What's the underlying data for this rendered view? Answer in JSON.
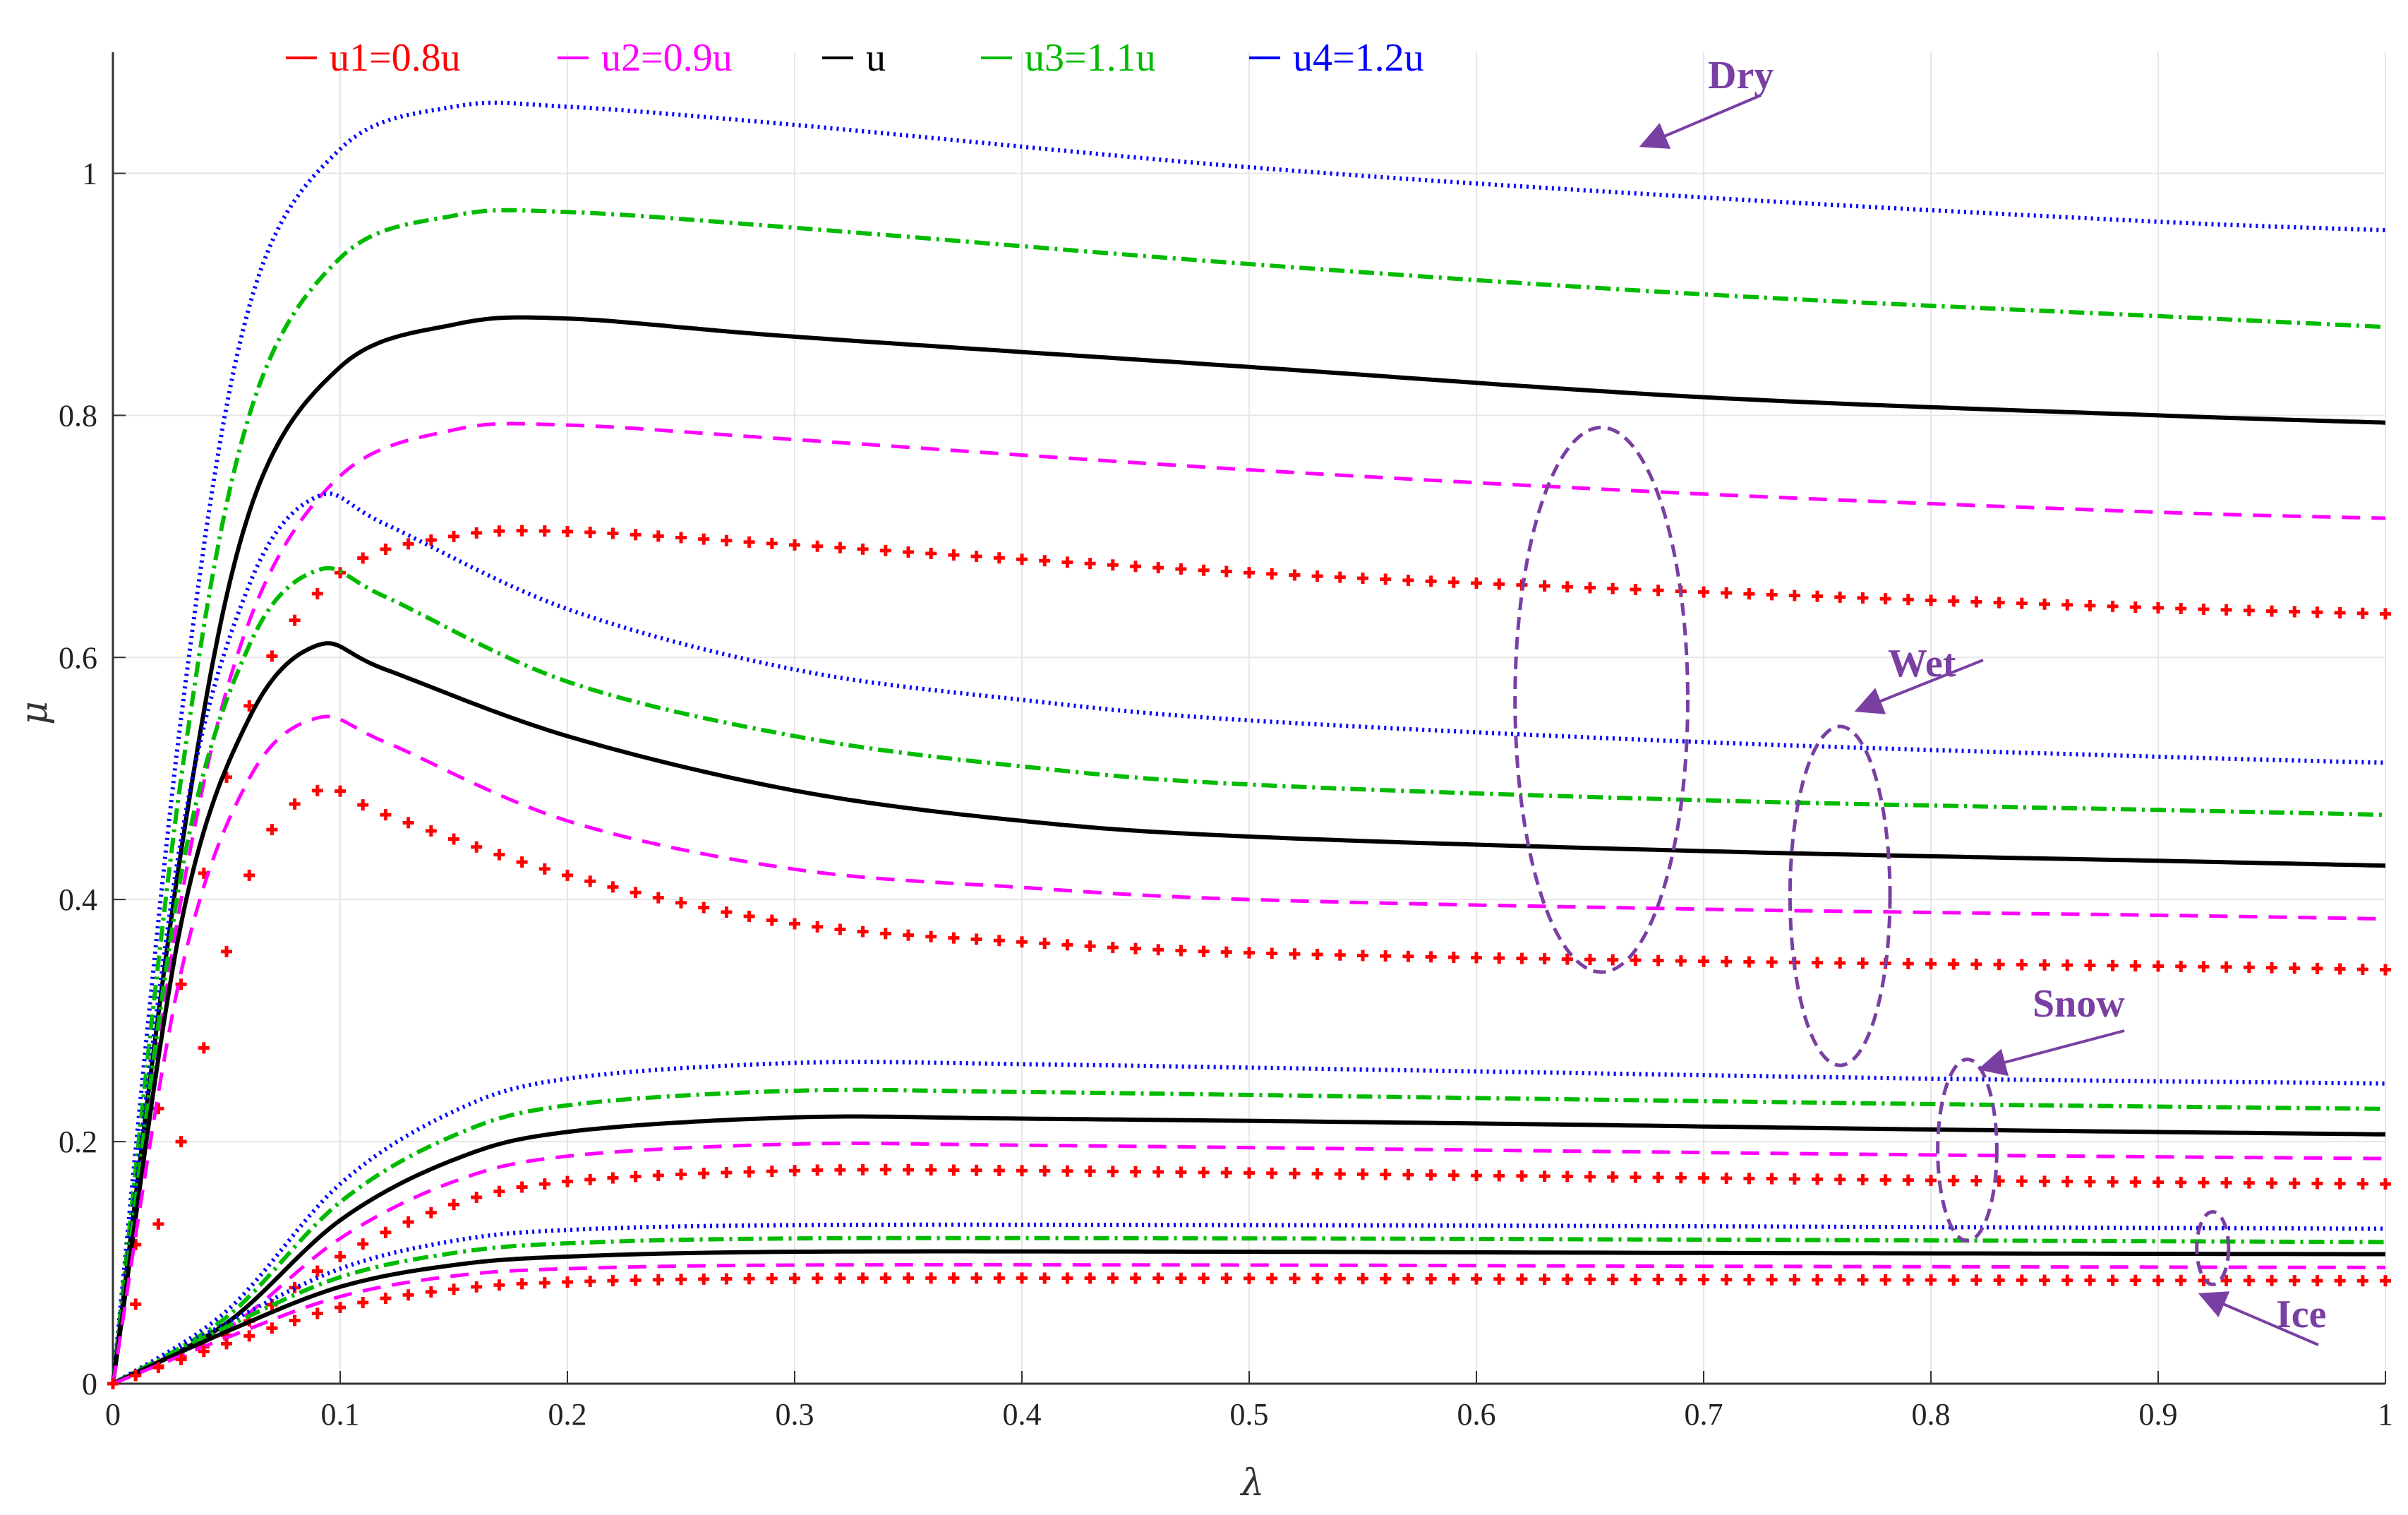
{
  "chart_data": {
    "type": "line",
    "xlabel": "λ",
    "ylabel": "μ",
    "xlim": [
      0,
      1
    ],
    "ylim": [
      0,
      1.1
    ],
    "grid": true,
    "legend_position": "top",
    "x_ticks": [
      "0",
      "0.1",
      "0.2",
      "0.3",
      "0.4",
      "0.5",
      "0.6",
      "0.7",
      "0.8",
      "0.9",
      "1"
    ],
    "y_ticks": [
      "0",
      "0.2",
      "0.4",
      "0.6",
      "0.8",
      "1"
    ],
    "legend": [
      {
        "name": "u1=0.8u",
        "color": "#ff0000"
      },
      {
        "name": "u2=0.9u",
        "color": "#ff00ff"
      },
      {
        "name": "u",
        "color": "#000000"
      },
      {
        "name": "u3=1.1u",
        "color": "#00bb00"
      },
      {
        "name": "u4=1.2u",
        "color": "#0000ff"
      }
    ],
    "annotations": [
      {
        "text": "Dry",
        "group": "Dry"
      },
      {
        "text": "Wet",
        "group": "Wet"
      },
      {
        "text": "Snow",
        "group": "Snow"
      },
      {
        "text": "Ice",
        "group": "Ice"
      }
    ],
    "groups": [
      {
        "name": "Dry",
        "series": [
          {
            "legend": "u4=1.2u",
            "points": [
              [
                0,
                0
              ],
              [
                0.03,
                0.55
              ],
              [
                0.06,
                0.89
              ],
              [
                0.1,
                1.02
              ],
              [
                0.15,
                1.055
              ],
              [
                0.2,
                1.055
              ],
              [
                0.3,
                1.04
              ],
              [
                0.5,
                1.005
              ],
              [
                0.7,
                0.98
              ],
              [
                0.9,
                0.96
              ],
              [
                1,
                0.953
              ]
            ]
          },
          {
            "legend": "u3=1.1u",
            "points": [
              [
                0,
                0
              ],
              [
                0.03,
                0.5
              ],
              [
                0.06,
                0.8
              ],
              [
                0.1,
                0.93
              ],
              [
                0.15,
                0.965
              ],
              [
                0.2,
                0.968
              ],
              [
                0.3,
                0.955
              ],
              [
                0.5,
                0.925
              ],
              [
                0.7,
                0.9
              ],
              [
                0.9,
                0.882
              ],
              [
                1,
                0.873
              ]
            ]
          },
          {
            "legend": "u",
            "points": [
              [
                0,
                0
              ],
              [
                0.03,
                0.44
              ],
              [
                0.06,
                0.72
              ],
              [
                0.1,
                0.84
              ],
              [
                0.15,
                0.875
              ],
              [
                0.2,
                0.88
              ],
              [
                0.3,
                0.865
              ],
              [
                0.5,
                0.84
              ],
              [
                0.7,
                0.815
              ],
              [
                0.9,
                0.8
              ],
              [
                1,
                0.794
              ]
            ]
          },
          {
            "legend": "u2=0.9u",
            "points": [
              [
                0,
                0
              ],
              [
                0.03,
                0.4
              ],
              [
                0.06,
                0.63
              ],
              [
                0.1,
                0.75
              ],
              [
                0.15,
                0.788
              ],
              [
                0.2,
                0.792
              ],
              [
                0.3,
                0.78
              ],
              [
                0.5,
                0.755
              ],
              [
                0.7,
                0.735
              ],
              [
                0.9,
                0.72
              ],
              [
                1,
                0.715
              ]
            ]
          },
          {
            "legend": "u1=0.8u",
            "points": [
              [
                0,
                0
              ],
              [
                0.03,
                0.33
              ],
              [
                0.06,
                0.56
              ],
              [
                0.1,
                0.67
              ],
              [
                0.15,
                0.7
              ],
              [
                0.2,
                0.704
              ],
              [
                0.3,
                0.693
              ],
              [
                0.5,
                0.67
              ],
              [
                0.7,
                0.654
              ],
              [
                0.9,
                0.641
              ],
              [
                1,
                0.636
              ]
            ]
          }
        ]
      },
      {
        "name": "Wet",
        "series": [
          {
            "legend": "u4=1.2u",
            "points": [
              [
                0,
                0
              ],
              [
                0.03,
                0.45
              ],
              [
                0.06,
                0.66
              ],
              [
                0.09,
                0.733
              ],
              [
                0.12,
                0.71
              ],
              [
                0.2,
                0.64
              ],
              [
                0.3,
                0.59
              ],
              [
                0.4,
                0.565
              ],
              [
                0.5,
                0.548
              ],
              [
                0.7,
                0.53
              ],
              [
                0.9,
                0.518
              ],
              [
                1,
                0.513
              ]
            ]
          },
          {
            "legend": "u3=1.1u",
            "points": [
              [
                0,
                0
              ],
              [
                0.03,
                0.42
              ],
              [
                0.06,
                0.61
              ],
              [
                0.09,
                0.672
              ],
              [
                0.12,
                0.65
              ],
              [
                0.2,
                0.58
              ],
              [
                0.3,
                0.535
              ],
              [
                0.4,
                0.51
              ],
              [
                0.5,
                0.495
              ],
              [
                0.7,
                0.482
              ],
              [
                0.9,
                0.474
              ],
              [
                1,
                0.47
              ]
            ]
          },
          {
            "legend": "u",
            "points": [
              [
                0,
                0
              ],
              [
                0.03,
                0.38
              ],
              [
                0.06,
                0.55
              ],
              [
                0.09,
                0.61
              ],
              [
                0.12,
                0.59
              ],
              [
                0.2,
                0.535
              ],
              [
                0.3,
                0.49
              ],
              [
                0.4,
                0.465
              ],
              [
                0.5,
                0.452
              ],
              [
                0.7,
                0.44
              ],
              [
                0.9,
                0.432
              ],
              [
                1,
                0.428
              ]
            ]
          },
          {
            "legend": "u2=0.9u",
            "points": [
              [
                0,
                0
              ],
              [
                0.03,
                0.34
              ],
              [
                0.06,
                0.5
              ],
              [
                0.09,
                0.55
              ],
              [
                0.12,
                0.53
              ],
              [
                0.2,
                0.465
              ],
              [
                0.3,
                0.425
              ],
              [
                0.4,
                0.41
              ],
              [
                0.5,
                0.4
              ],
              [
                0.7,
                0.392
              ],
              [
                0.9,
                0.387
              ],
              [
                1,
                0.384
              ]
            ]
          },
          {
            "legend": "u1=0.8u",
            "points": [
              [
                0,
                0
              ],
              [
                0.03,
                0.2
              ],
              [
                0.06,
                0.42
              ],
              [
                0.09,
                0.49
              ],
              [
                0.12,
                0.47
              ],
              [
                0.2,
                0.42
              ],
              [
                0.3,
                0.38
              ],
              [
                0.4,
                0.365
              ],
              [
                0.5,
                0.356
              ],
              [
                0.7,
                0.349
              ],
              [
                0.9,
                0.345
              ],
              [
                1,
                0.342
              ]
            ]
          }
        ]
      },
      {
        "name": "Snow",
        "series": [
          {
            "legend": "u4=1.2u",
            "points": [
              [
                0,
                0
              ],
              [
                0.05,
                0.06
              ],
              [
                0.1,
                0.165
              ],
              [
                0.15,
                0.225
              ],
              [
                0.2,
                0.252
              ],
              [
                0.3,
                0.265
              ],
              [
                0.4,
                0.264
              ],
              [
                0.6,
                0.258
              ],
              [
                0.8,
                0.252
              ],
              [
                1,
                0.248
              ]
            ]
          },
          {
            "legend": "u3=1.1u",
            "points": [
              [
                0,
                0
              ],
              [
                0.05,
                0.055
              ],
              [
                0.1,
                0.15
              ],
              [
                0.15,
                0.205
              ],
              [
                0.2,
                0.23
              ],
              [
                0.3,
                0.242
              ],
              [
                0.4,
                0.241
              ],
              [
                0.6,
                0.236
              ],
              [
                0.8,
                0.231
              ],
              [
                1,
                0.227
              ]
            ]
          },
          {
            "legend": "u",
            "points": [
              [
                0,
                0
              ],
              [
                0.05,
                0.05
              ],
              [
                0.1,
                0.135
              ],
              [
                0.15,
                0.185
              ],
              [
                0.2,
                0.208
              ],
              [
                0.3,
                0.22
              ],
              [
                0.4,
                0.219
              ],
              [
                0.6,
                0.215
              ],
              [
                0.8,
                0.21
              ],
              [
                1,
                0.206
              ]
            ]
          },
          {
            "legend": "u2=0.9u",
            "points": [
              [
                0,
                0
              ],
              [
                0.05,
                0.045
              ],
              [
                0.1,
                0.12
              ],
              [
                0.15,
                0.167
              ],
              [
                0.2,
                0.188
              ],
              [
                0.3,
                0.198
              ],
              [
                0.4,
                0.197
              ],
              [
                0.6,
                0.193
              ],
              [
                0.8,
                0.189
              ],
              [
                1,
                0.186
              ]
            ]
          },
          {
            "legend": "u1=0.8u",
            "points": [
              [
                0,
                0
              ],
              [
                0.05,
                0.04
              ],
              [
                0.1,
                0.105
              ],
              [
                0.15,
                0.148
              ],
              [
                0.2,
                0.167
              ],
              [
                0.3,
                0.176
              ],
              [
                0.4,
                0.176
              ],
              [
                0.6,
                0.172
              ],
              [
                0.8,
                0.168
              ],
              [
                1,
                0.165
              ]
            ]
          }
        ]
      },
      {
        "name": "Ice",
        "series": [
          {
            "legend": "u4=1.2u",
            "points": [
              [
                0,
                0
              ],
              [
                0.05,
                0.05
              ],
              [
                0.1,
                0.095
              ],
              [
                0.15,
                0.118
              ],
              [
                0.2,
                0.127
              ],
              [
                0.3,
                0.131
              ],
              [
                0.5,
                0.131
              ],
              [
                0.7,
                0.13
              ],
              [
                1,
                0.128
              ]
            ]
          },
          {
            "legend": "u3=1.1u",
            "points": [
              [
                0,
                0
              ],
              [
                0.05,
                0.047
              ],
              [
                0.1,
                0.088
              ],
              [
                0.15,
                0.108
              ],
              [
                0.2,
                0.116
              ],
              [
                0.3,
                0.12
              ],
              [
                0.5,
                0.12
              ],
              [
                0.7,
                0.119
              ],
              [
                1,
                0.117
              ]
            ]
          },
          {
            "legend": "u",
            "points": [
              [
                0,
                0
              ],
              [
                0.05,
                0.043
              ],
              [
                0.1,
                0.08
              ],
              [
                0.15,
                0.098
              ],
              [
                0.2,
                0.105
              ],
              [
                0.3,
                0.109
              ],
              [
                0.5,
                0.109
              ],
              [
                0.7,
                0.108
              ],
              [
                1,
                0.107
              ]
            ]
          },
          {
            "legend": "u2=0.9u",
            "points": [
              [
                0,
                0
              ],
              [
                0.05,
                0.038
              ],
              [
                0.1,
                0.072
              ],
              [
                0.15,
                0.089
              ],
              [
                0.2,
                0.095
              ],
              [
                0.3,
                0.098
              ],
              [
                0.5,
                0.098
              ],
              [
                0.7,
                0.097
              ],
              [
                1,
                0.096
              ]
            ]
          },
          {
            "legend": "u1=0.8u",
            "points": [
              [
                0,
                0
              ],
              [
                0.05,
                0.033
              ],
              [
                0.1,
                0.063
              ],
              [
                0.15,
                0.078
              ],
              [
                0.2,
                0.084
              ],
              [
                0.3,
                0.087
              ],
              [
                0.5,
                0.087
              ],
              [
                0.7,
                0.086
              ],
              [
                1,
                0.085
              ]
            ]
          }
        ]
      }
    ]
  }
}
